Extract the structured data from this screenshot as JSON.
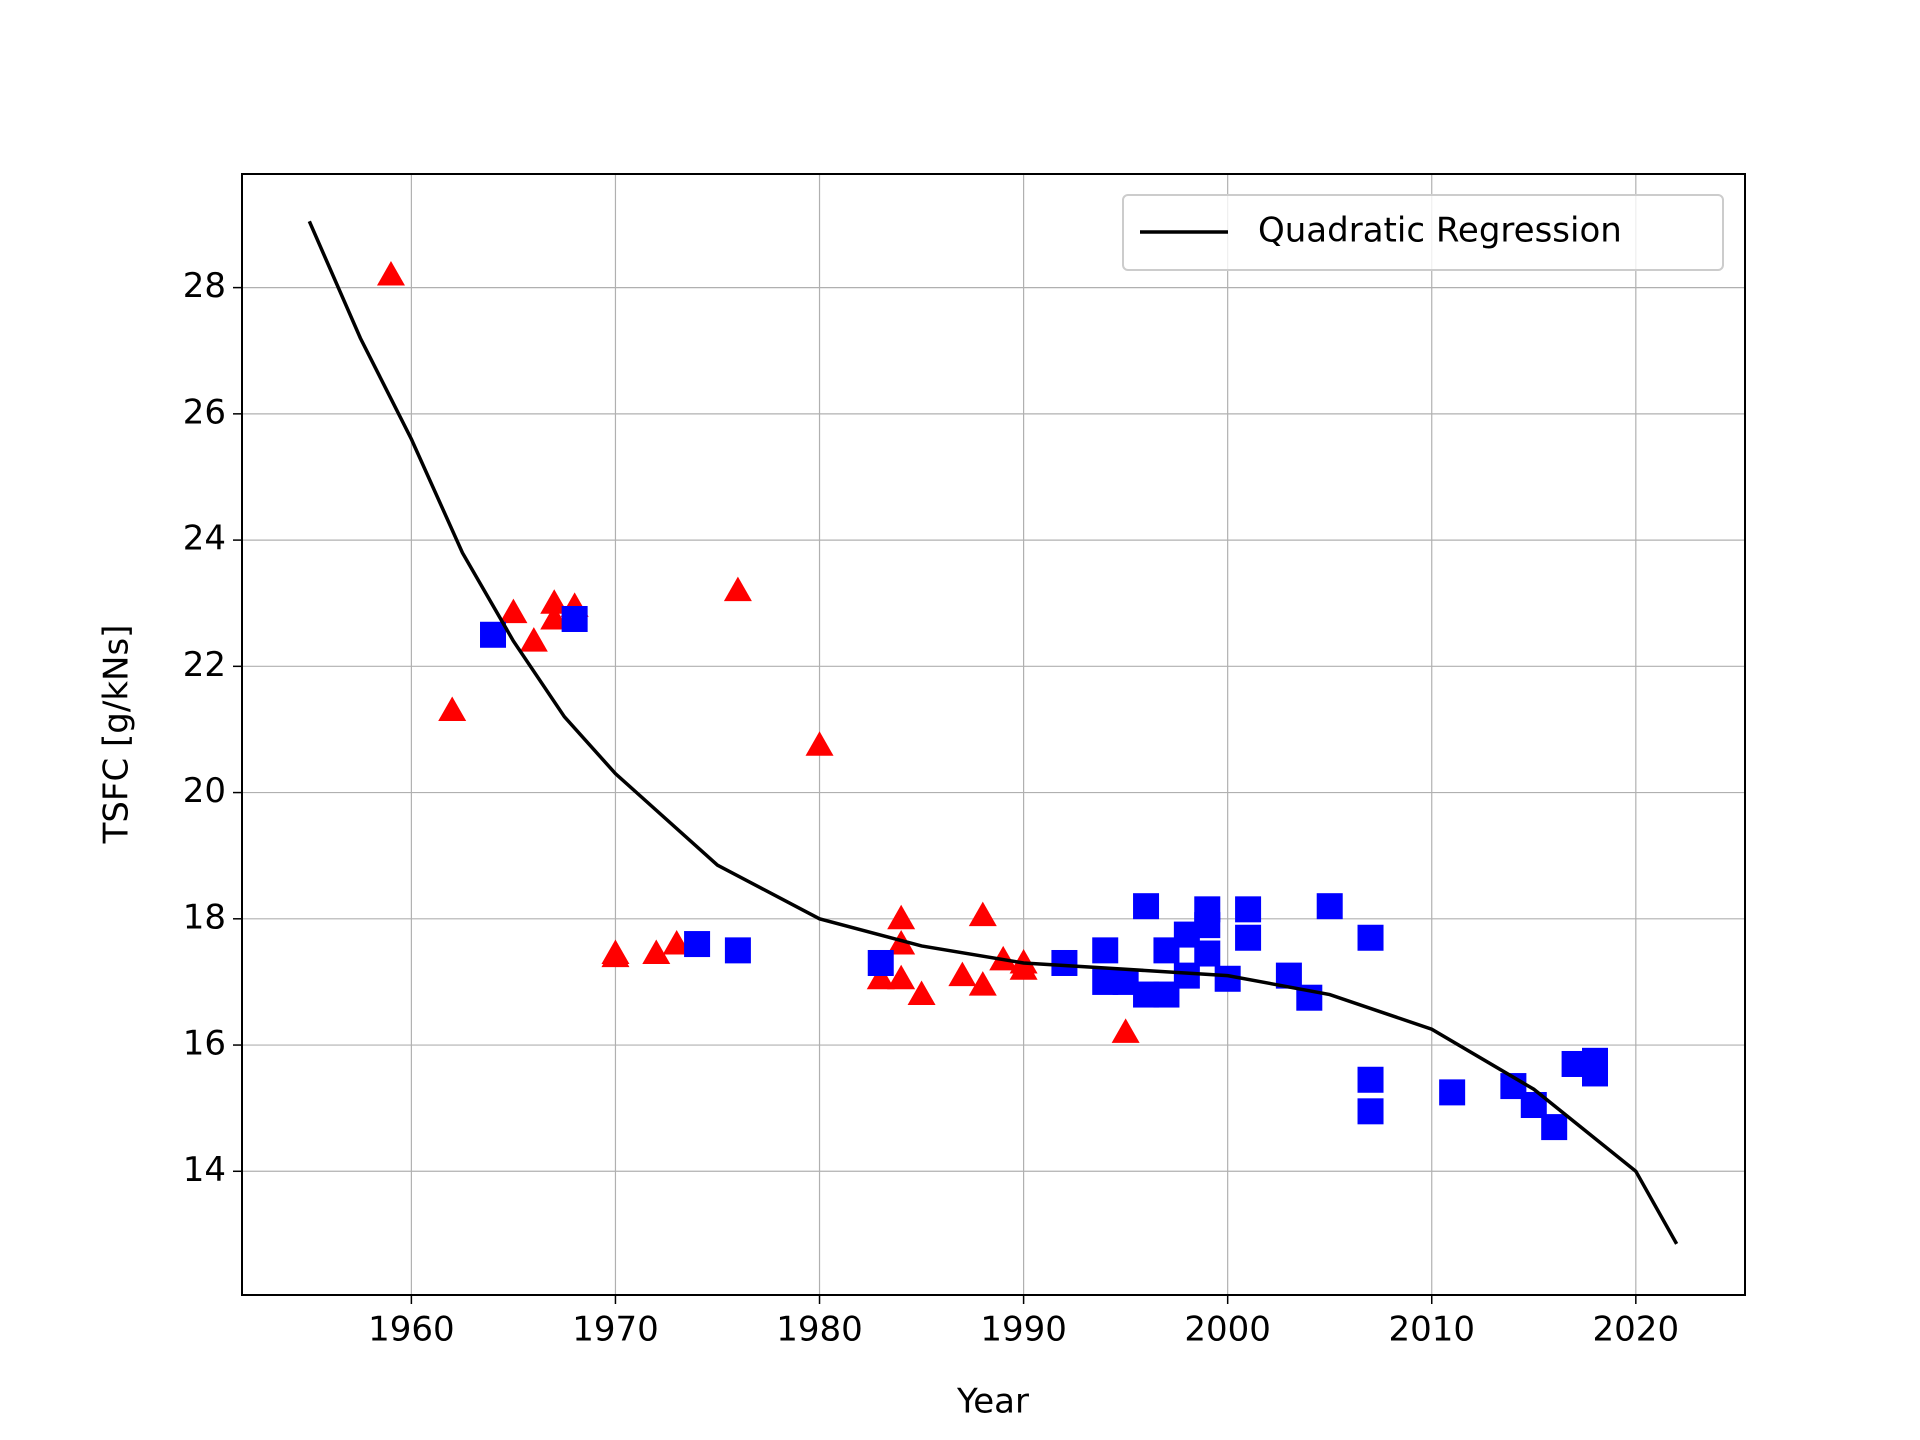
{
  "chart_data": {
    "type": "scatter",
    "x_label": "Year",
    "y_label": "TSFC [g/kNs]",
    "xlim": [
      1951.7,
      2025.35
    ],
    "ylim": [
      12.04,
      29.8
    ],
    "xticks": [
      1960,
      1970,
      1980,
      1990,
      2000,
      2010,
      2020
    ],
    "yticks": [
      14,
      16,
      18,
      20,
      22,
      24,
      26,
      28
    ],
    "grid": true,
    "legend": "upper right",
    "series": [
      {
        "marker": "triangle",
        "color": "#ff0000",
        "x": [
          1959,
          1962,
          1965,
          1966,
          1967,
          1967,
          1968,
          1970,
          1970,
          1972,
          1973,
          1976,
          1980,
          1983,
          1984,
          1984,
          1984,
          1985,
          1987,
          1988,
          1988,
          1989,
          1990,
          1990,
          1995
        ],
        "values": [
          28.2,
          21.3,
          22.85,
          22.4,
          23.0,
          22.75,
          22.95,
          17.45,
          17.4,
          17.45,
          17.6,
          23.2,
          20.75,
          17.05,
          18.0,
          17.6,
          17.05,
          16.8,
          17.1,
          18.05,
          16.95,
          17.35,
          17.3,
          17.2,
          16.2
        ]
      },
      {
        "marker": "square",
        "color": "#0000ff",
        "x": [
          1964,
          1968,
          1974,
          1976,
          1983,
          1992,
          1994,
          1994,
          1995,
          1996,
          1996,
          1997,
          1997,
          1998,
          1998,
          1999,
          1999,
          1999,
          2000,
          2001,
          2001,
          2003,
          2004,
          2005,
          2007,
          2007,
          2007,
          2011,
          2014,
          2015,
          2016,
          2017,
          2018,
          2018
        ],
        "values": [
          22.5,
          22.75,
          17.6,
          17.5,
          17.3,
          17.3,
          17.5,
          17.0,
          17.0,
          18.2,
          16.8,
          17.5,
          16.8,
          17.75,
          17.1,
          18.15,
          17.9,
          17.45,
          17.05,
          18.15,
          17.7,
          17.1,
          16.75,
          18.2,
          17.7,
          15.45,
          14.95,
          15.25,
          15.35,
          15.05,
          14.7,
          15.7,
          15.75,
          15.55
        ]
      },
      {
        "marker": "line",
        "name": "Quadratic Regression",
        "color": "#000000",
        "x": [
          1955,
          1957.5,
          1960,
          1962.5,
          1965,
          1967.5,
          1970,
          1975,
          1980,
          1985,
          1990,
          1995,
          2000,
          2005,
          2010,
          2015,
          2020,
          2022
        ],
        "values": [
          29.05,
          27.2,
          25.6,
          23.8,
          22.4,
          21.2,
          20.3,
          18.85,
          18.0,
          17.57,
          17.3,
          17.2,
          17.1,
          16.8,
          16.25,
          15.3,
          14.0,
          12.85
        ]
      }
    ]
  }
}
